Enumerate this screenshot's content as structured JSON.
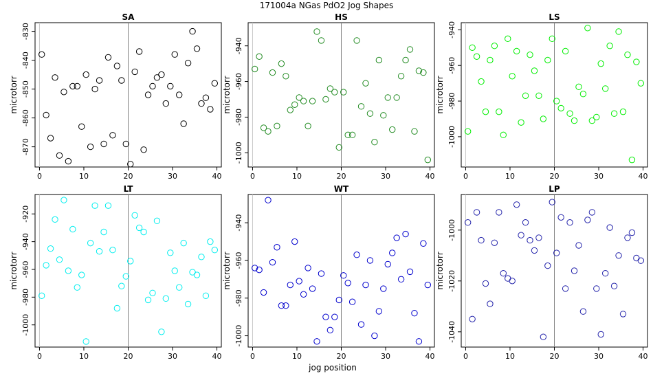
{
  "figure": {
    "title": "171004a   NGas PdO2 Jog Shapes",
    "xlabel": "jog position"
  },
  "chart_data": [
    {
      "type": "scatter",
      "title": "SA",
      "ylabel": "microtorr",
      "color": "#000000",
      "xlim": [
        -1,
        41
      ],
      "ylim": [
        -877,
        -827
      ],
      "xticks": [
        0,
        10,
        20,
        30,
        40
      ],
      "yticks": [
        -870,
        -860,
        -850,
        -840,
        -830
      ],
      "ytick_labels": [
        "-870",
        "-860",
        "-850",
        "-840",
        "-830"
      ],
      "vline": 20,
      "grid": false,
      "x": [
        0.5,
        1.5,
        2.5,
        3.5,
        4.5,
        5.5,
        6.5,
        7.5,
        8.5,
        9.5,
        10.5,
        11.5,
        12.5,
        13.5,
        14.5,
        15.5,
        16.5,
        17.5,
        18.5,
        19.5,
        20.5,
        21.5,
        22.5,
        23.5,
        24.5,
        25.5,
        26.5,
        27.5,
        28.5,
        29.5,
        30.5,
        31.5,
        32.5,
        33.5,
        34.5,
        35.5,
        36.5,
        37.5,
        38.5,
        39.5
      ],
      "y": [
        -838,
        -859,
        -867,
        -846,
        -873,
        -851,
        -875,
        -849,
        -849,
        -863,
        -845,
        -870,
        -850,
        -847,
        -869,
        -839,
        -866,
        -842,
        -847,
        -869,
        -876,
        -844,
        -837,
        -871,
        -852,
        -849,
        -846,
        -845,
        -855,
        -849,
        -838,
        -852,
        -862,
        -841,
        -830,
        -836,
        -855,
        -853,
        -857,
        -848
      ]
    },
    {
      "type": "scatter",
      "title": "HS",
      "ylabel": "microtorr",
      "color": "#228B22",
      "xlim": [
        -1,
        41
      ],
      "ylim": [
        -1008,
        -927
      ],
      "xticks": [
        0,
        10,
        20,
        30,
        40
      ],
      "yticks": [
        -1000,
        -980,
        -960,
        -940
      ],
      "ytick_labels": [
        "-1000",
        "-980",
        "-960",
        "-940"
      ],
      "vline": 20,
      "grid": false,
      "x": [
        0.5,
        1.5,
        2.5,
        3.5,
        4.5,
        5.5,
        6.5,
        7.5,
        8.5,
        9.5,
        10.5,
        11.5,
        12.5,
        13.5,
        14.5,
        15.5,
        16.5,
        17.5,
        18.5,
        19.5,
        20.5,
        21.5,
        22.5,
        23.5,
        24.5,
        25.5,
        26.5,
        27.5,
        28.5,
        29.5,
        30.5,
        31.5,
        32.5,
        33.5,
        34.5,
        35.5,
        36.5,
        37.5,
        38.5,
        39.5
      ],
      "y": [
        -953,
        -946,
        -986,
        -988,
        -955,
        -985,
        -950,
        -957,
        -976,
        -973,
        -969,
        -971,
        -985,
        -971,
        -932,
        -937,
        -970,
        -964,
        -966,
        -997,
        -966,
        -990,
        -990,
        -937,
        -974,
        -961,
        -978,
        -994,
        -948,
        -979,
        -969,
        -987,
        -969,
        -957,
        -948,
        -942,
        -988,
        -954,
        -955,
        -1004
      ]
    },
    {
      "type": "scatter",
      "title": "LS",
      "ylabel": "microtorr",
      "color": "#00EE00",
      "xlim": [
        -1,
        41
      ],
      "ylim": [
        -1017,
        -936
      ],
      "xticks": [
        0,
        10,
        20,
        30,
        40
      ],
      "yticks": [
        -1000,
        -980,
        -960,
        -940
      ],
      "ytick_labels": [
        "-1000",
        "-980",
        "-960",
        "-940"
      ],
      "vline": 20,
      "grid": false,
      "x": [
        0.5,
        1.5,
        2.5,
        3.5,
        4.5,
        5.5,
        6.5,
        7.5,
        8.5,
        9.5,
        10.5,
        11.5,
        12.5,
        13.5,
        14.5,
        15.5,
        16.5,
        17.5,
        18.5,
        19.5,
        20.5,
        21.5,
        22.5,
        23.5,
        24.5,
        25.5,
        26.5,
        27.5,
        28.5,
        29.5,
        30.5,
        31.5,
        32.5,
        33.5,
        34.5,
        35.5,
        36.5,
        37.5,
        38.5,
        39.5
      ],
      "y": [
        -997,
        -950,
        -955,
        -969,
        -986,
        -957,
        -949,
        -986,
        -999,
        -945,
        -966,
        -952,
        -992,
        -977,
        -954,
        -963,
        -977,
        -990,
        -957,
        -945,
        -980,
        -984,
        -952,
        -987,
        -991,
        -972,
        -976,
        -939,
        -991,
        -989,
        -959,
        -973,
        -949,
        -987,
        -941,
        -986,
        -954,
        -1013,
        -958,
        -970
      ]
    },
    {
      "type": "scatter",
      "title": "LT",
      "ylabel": "microtorr",
      "color": "#00EEEE",
      "xlim": [
        -1,
        41
      ],
      "ylim": [
        -1016,
        -906
      ],
      "xticks": [
        0,
        10,
        20,
        30,
        40
      ],
      "yticks": [
        -1000,
        -980,
        -960,
        -940,
        -920
      ],
      "ytick_labels": [
        "-1000",
        "-980",
        "-960",
        "-940",
        "-920"
      ],
      "vline": 20,
      "grid": false,
      "x": [
        0.5,
        1.5,
        2.5,
        3.5,
        4.5,
        5.5,
        6.5,
        7.5,
        8.5,
        9.5,
        10.5,
        11.5,
        12.5,
        13.5,
        14.5,
        15.5,
        16.5,
        17.5,
        18.5,
        19.5,
        20.5,
        21.5,
        22.5,
        23.5,
        24.5,
        25.5,
        26.5,
        27.5,
        28.5,
        29.5,
        30.5,
        31.5,
        32.5,
        33.5,
        34.5,
        35.5,
        36.5,
        37.5,
        38.5,
        39.5
      ],
      "y": [
        -979,
        -957,
        -945,
        -924,
        -953,
        -910,
        -961,
        -931,
        -973,
        -964,
        -1012,
        -941,
        -914,
        -947,
        -933,
        -914,
        -946,
        -988,
        -972,
        -965,
        -954,
        -921,
        -930,
        -933,
        -982,
        -977,
        -925,
        -1005,
        -981,
        -948,
        -961,
        -973,
        -941,
        -985,
        -962,
        -964,
        -951,
        -979,
        -940,
        -946
      ]
    },
    {
      "type": "scatter",
      "title": "WT",
      "ylabel": "microtorr",
      "color": "#0000CD",
      "xlim": [
        -1,
        41
      ],
      "ylim": [
        -1006,
        -925
      ],
      "xticks": [
        0,
        10,
        20,
        30,
        40
      ],
      "yticks": [
        -1000,
        -980,
        -960,
        -940
      ],
      "ytick_labels": [
        "-1000",
        "-980",
        "-960",
        "-940"
      ],
      "vline": 20,
      "grid": false,
      "x": [
        0.5,
        1.5,
        2.5,
        3.5,
        4.5,
        5.5,
        6.5,
        7.5,
        8.5,
        9.5,
        10.5,
        11.5,
        12.5,
        13.5,
        14.5,
        15.5,
        16.5,
        17.5,
        18.5,
        19.5,
        20.5,
        21.5,
        22.5,
        23.5,
        24.5,
        25.5,
        26.5,
        27.5,
        28.5,
        29.5,
        30.5,
        31.5,
        32.5,
        33.5,
        34.5,
        35.5,
        36.5,
        37.5,
        38.5,
        39.5
      ],
      "y": [
        -964,
        -965,
        -977,
        -928,
        -961,
        -953,
        -984,
        -984,
        -973,
        -950,
        -971,
        -978,
        -964,
        -975,
        -1003,
        -967,
        -990,
        -997,
        -990,
        -981,
        -968,
        -972,
        -982,
        -957,
        -994,
        -973,
        -960,
        -1000,
        -987,
        -975,
        -962,
        -956,
        -948,
        -970,
        -946,
        -966,
        -988,
        -1003,
        -951,
        -973
      ]
    },
    {
      "type": "scatter",
      "title": "LP",
      "ylabel": "microtorr",
      "color": "#2222AA",
      "xlim": [
        -1,
        41
      ],
      "ylim": [
        -1046,
        -986
      ],
      "xticks": [
        0,
        10,
        20,
        30,
        40
      ],
      "yticks": [
        -1040,
        -1020,
        -1000
      ],
      "ytick_labels": [
        "-1040",
        "-1020",
        "-1000"
      ],
      "vline": 20,
      "grid": false,
      "x": [
        0.5,
        1.5,
        2.5,
        3.5,
        4.5,
        5.5,
        6.5,
        7.5,
        8.5,
        9.5,
        10.5,
        11.5,
        12.5,
        13.5,
        14.5,
        15.5,
        16.5,
        17.5,
        18.5,
        19.5,
        20.5,
        21.5,
        22.5,
        23.5,
        24.5,
        25.5,
        26.5,
        27.5,
        28.5,
        29.5,
        30.5,
        31.5,
        32.5,
        33.5,
        34.5,
        35.5,
        36.5,
        37.5,
        38.5,
        39.5
      ],
      "y": [
        -997,
        -1035,
        -993,
        -1004,
        -1021,
        -1029,
        -1005,
        -993,
        -1017,
        -1019,
        -1020,
        -990,
        -1002,
        -997,
        -1004,
        -1008,
        -1003,
        -1042,
        -1014,
        -989,
        -1009,
        -995,
        -1023,
        -997,
        -1016,
        -1006,
        -1032,
        -996,
        -993,
        -1023,
        -1041,
        -1017,
        -999,
        -1022,
        -1010,
        -1033,
        -1003,
        -1001,
        -1011,
        -1012
      ]
    }
  ]
}
